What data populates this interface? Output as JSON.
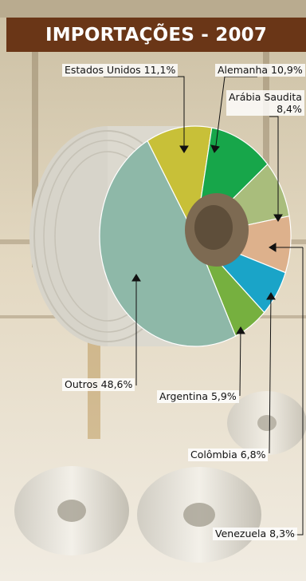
{
  "title": "IMPORTAÇÕES - 2007",
  "chart_data": {
    "type": "pie",
    "title": "IMPORTAÇÕES - 2007",
    "unit": "%",
    "slices": [
      {
        "label": "Estados Unidos",
        "value": 11.1,
        "display": "Estados Unidos 11,1%",
        "color": "#c8c038"
      },
      {
        "label": "Alemanha",
        "value": 10.9,
        "display": "Alemanha 10,9%",
        "color": "#17a64a"
      },
      {
        "label": "Arábia Saudita",
        "value": 8.4,
        "display_line1": "Arábia Saudita",
        "display_line2": "8,4%",
        "color": "#a9bd7c"
      },
      {
        "label": "Venezuela",
        "value": 8.3,
        "display": "Venezuela 8,3%",
        "color": "#ddb18c"
      },
      {
        "label": "Colômbia",
        "value": 6.8,
        "display": "Colômbia 6,8%",
        "color": "#1aa4c8"
      },
      {
        "label": "Argentina",
        "value": 5.9,
        "display": "Argentina 5,9%",
        "color": "#76b03f"
      },
      {
        "label": "Outros",
        "value": 48.6,
        "display": "Outros 48,6%",
        "color": "#8eb8a8"
      }
    ]
  }
}
